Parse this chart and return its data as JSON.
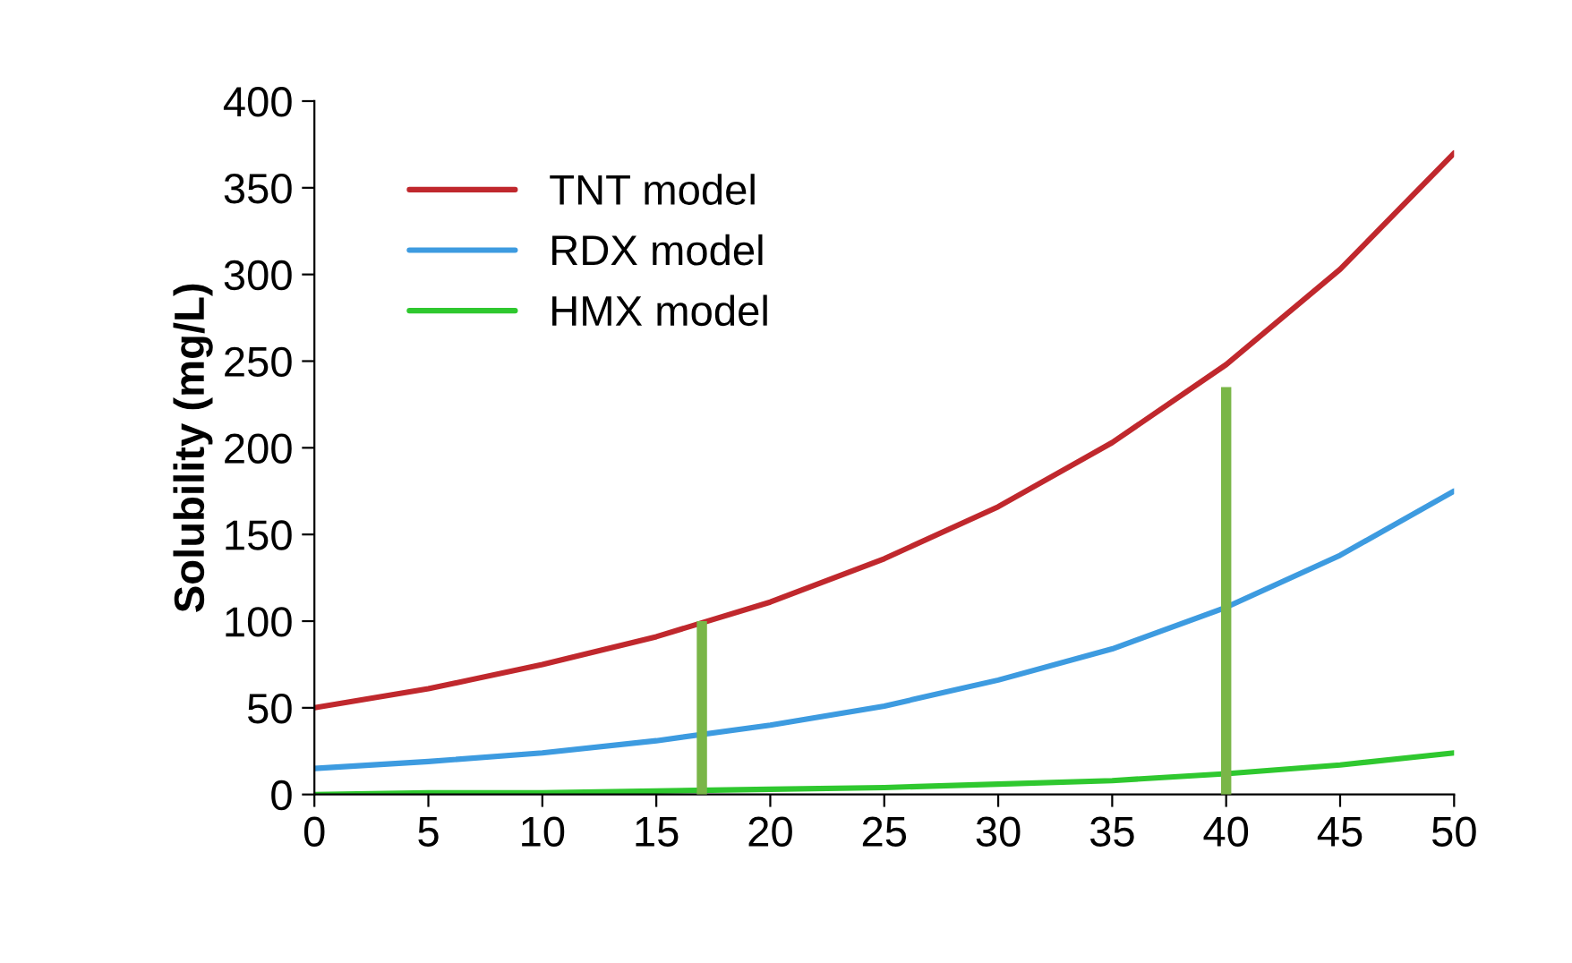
{
  "chart_data": {
    "type": "line",
    "ylabel": "Solubility (mg/L)",
    "x": [
      0,
      5,
      10,
      15,
      20,
      25,
      30,
      35,
      40,
      45,
      50
    ],
    "series": [
      {
        "name": "TNT model",
        "color": "#c0282d",
        "values": [
          50,
          61,
          75,
          91,
          111,
          136,
          166,
          203,
          248,
          303,
          370
        ]
      },
      {
        "name": "RDX model",
        "color": "#3d9be0",
        "values": [
          15,
          19,
          24,
          31,
          40,
          51,
          66,
          84,
          108,
          138,
          175
        ]
      },
      {
        "name": "HMX model",
        "color": "#2fc82f",
        "values": [
          0,
          1,
          1,
          2,
          3,
          4,
          6,
          8,
          12,
          17,
          24
        ]
      },
      {
        "type": "bar",
        "color": "#7ab648",
        "x": [
          17,
          40
        ],
        "values": [
          100,
          235
        ]
      }
    ],
    "xlim": [
      0,
      50
    ],
    "xticks": [
      0,
      5,
      10,
      15,
      20,
      25,
      30,
      35,
      40,
      45,
      50
    ],
    "ylim": [
      0,
      400
    ],
    "yticks": [
      0,
      50,
      100,
      150,
      200,
      250,
      300,
      350,
      400
    ],
    "grid": false,
    "legend": "top left",
    "marker": "none",
    "line_style": "solid"
  }
}
